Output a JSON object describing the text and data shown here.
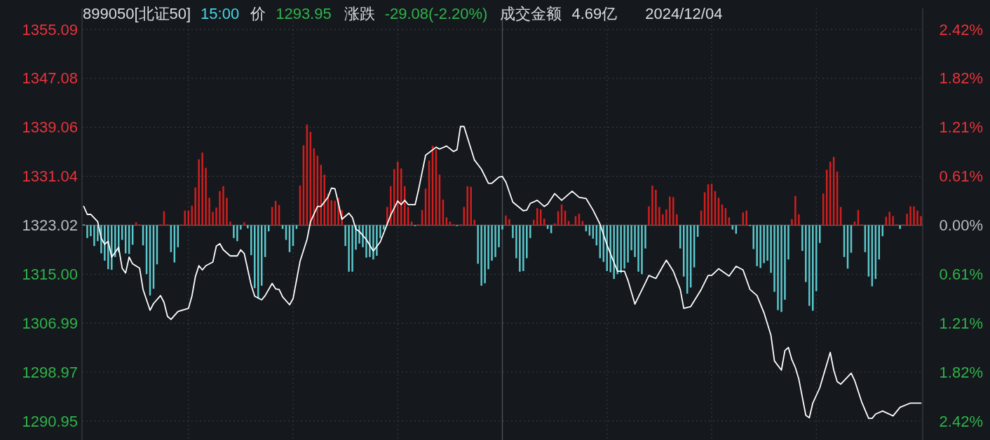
{
  "chart_data": {
    "type": "line",
    "title": "899050[北证50]",
    "annotations": [
      "15:00",
      "价",
      "1293.95",
      "涨跌",
      "-29.08(-2.20%)",
      "成交金额",
      "4.69亿",
      "2024/12/04"
    ],
    "categories": [
      null,
      null,
      null,
      null,
      null,
      null,
      null,
      null,
      null,
      null,
      null,
      null,
      null,
      null,
      null,
      null,
      null,
      null,
      null,
      null,
      null,
      null,
      null,
      null,
      null,
      null,
      null,
      null,
      null,
      null,
      null,
      null,
      null,
      null,
      null,
      null,
      null,
      null,
      null,
      null,
      null,
      null,
      null,
      null,
      null,
      null,
      null,
      null,
      null,
      null,
      null,
      null,
      null,
      null,
      null,
      null,
      null,
      null,
      null,
      null,
      null,
      null,
      null,
      null,
      null,
      null,
      null,
      null,
      null,
      null,
      null,
      null,
      null,
      null,
      null,
      null,
      null,
      null,
      null,
      null,
      null,
      null,
      null,
      null,
      null,
      null,
      null,
      null,
      null,
      null,
      null,
      null,
      null,
      null,
      null,
      null,
      null,
      null,
      null,
      null,
      null,
      null,
      null,
      null,
      null,
      null,
      null,
      null,
      null,
      null,
      null,
      null,
      null,
      null,
      null,
      null,
      null,
      null,
      null,
      null,
      null,
      null,
      null,
      null,
      null,
      null,
      null,
      null,
      null,
      null,
      null,
      null,
      null,
      null,
      null,
      null,
      null,
      null,
      null,
      null,
      null,
      null,
      null,
      null,
      null,
      null,
      null,
      null,
      null,
      null,
      null,
      null,
      null,
      null,
      null,
      null,
      null,
      null,
      null,
      null,
      null,
      null,
      null,
      null,
      null,
      null,
      null,
      null,
      null,
      null,
      null,
      null,
      null,
      null,
      null,
      null,
      null,
      null,
      null,
      null,
      null,
      null,
      null,
      null,
      null,
      null,
      null,
      null,
      null,
      null,
      null,
      null,
      null,
      null,
      null,
      null,
      null,
      null,
      null,
      null,
      null,
      null,
      null,
      null,
      null,
      null,
      null,
      null,
      null,
      null,
      null,
      null,
      null,
      null,
      null,
      null,
      null,
      null,
      null,
      null,
      null,
      null,
      null,
      null,
      null,
      null,
      null,
      null,
      null,
      null,
      null,
      null,
      null,
      null,
      null,
      null,
      null,
      null,
      null,
      null,
      null
    ],
    "ylim": [
      1290.95,
      1355.09
    ],
    "yticks": [
      {
        "value": 1290.95,
        "label": "1290.95"
      },
      {
        "value": 1298.97,
        "label": "1298.97"
      },
      {
        "value": 1306.99,
        "label": "1306.99"
      },
      {
        "value": 1315.0,
        "label": "1315.00"
      },
      {
        "value": 1323.02,
        "label": "1323.02"
      },
      {
        "value": 1331.04,
        "label": "1331.04"
      },
      {
        "value": 1339.06,
        "label": "1339.06"
      },
      {
        "value": 1347.08,
        "label": "1347.08"
      },
      {
        "value": 1355.09,
        "label": "1355.09"
      }
    ],
    "y2lim": [
      -2.42,
      2.42
    ],
    "y2ticks": [
      {
        "value": -2.42,
        "label": "2.42%"
      },
      {
        "value": -1.82,
        "label": "1.82%"
      },
      {
        "value": -1.21,
        "label": "1.21%"
      },
      {
        "value": -0.61,
        "label": "0.61%"
      },
      {
        "value": 0,
        "label": "0.00%"
      },
      {
        "value": 0.61,
        "label": "0.61%"
      },
      {
        "value": 1.21,
        "label": "1.21%"
      },
      {
        "value": 1.82,
        "label": "1.82%"
      },
      {
        "value": 2.42,
        "label": "2.42%"
      }
    ],
    "grid": "y",
    "ref_lines": [
      {
        "axis": "y",
        "value": 1323.02,
        "color": "#555b62",
        "line_style": "solid"
      }
    ],
    "series": [
      {
        "type": "bar",
        "base": [
          1323.02,
          1323.02,
          1323.02,
          1323.02,
          1323.02,
          1323.02,
          1323.02,
          1323.02,
          1323.02,
          1323.02,
          1323.02,
          1323.02,
          1323.02,
          1323.02,
          1323.02,
          1323.02,
          1323.02,
          1323.02,
          1323.02,
          1323.02,
          1323.02,
          1323.02,
          1323.02,
          1323.02,
          1323.02,
          1323.02,
          1323.02,
          1323.02,
          1323.02,
          1323.02,
          1323.02,
          1323.02,
          1323.02,
          1323.02,
          1323.02,
          1323.02,
          1323.02,
          1323.02,
          1323.02,
          1323.02,
          1323.02,
          1323.02,
          1323.02,
          1323.02,
          1323.02,
          1323.02,
          1323.02,
          1323.02,
          1323.02,
          1323.02,
          1323.02,
          1323.02,
          1323.02,
          1323.02,
          1323.02,
          1323.02,
          1323.02,
          1323.02,
          1323.02,
          1323.02,
          1323.02,
          1323.02,
          1323.02,
          1323.02,
          1323.02,
          1323.02,
          1323.02,
          1323.02,
          1323.02,
          1323.02,
          1323.02,
          1323.02,
          1323.02,
          1323.02,
          1323.02,
          1323.02,
          1323.02,
          1323.02,
          1323.02,
          1323.02,
          1323.02,
          1323.02,
          1323.02,
          1323.02,
          1323.02,
          1323.02,
          1323.02,
          1323.02,
          1323.02,
          1323.02,
          1323.02,
          1323.02,
          1323.02,
          1323.02,
          1323.02,
          1323.02,
          1323.02,
          1323.02,
          1323.02,
          1323.02,
          1323.02,
          1323.02,
          1323.02,
          1323.02,
          1323.02,
          1323.02,
          1323.02,
          1323.02,
          1323.02,
          1323.02,
          1323.02,
          1323.02,
          1323.02,
          1323.02,
          1323.02,
          1323.02,
          1323.02,
          1323.02,
          1323.02,
          1323.02,
          1323.02,
          1323.02,
          1323.02,
          1323.02,
          1323.02,
          1323.02,
          1323.02,
          1323.02,
          1323.02,
          1323.02,
          1323.02,
          1323.02,
          1323.02,
          1323.02,
          1323.02,
          1323.02,
          1323.02,
          1323.02,
          1323.02,
          1323.02,
          1323.02,
          1323.02,
          1323.02,
          1323.02,
          1323.02,
          1323.02,
          1323.02,
          1323.02,
          1323.02,
          1323.02,
          1323.02,
          1323.02,
          1323.02,
          1323.02,
          1323.02,
          1323.02,
          1323.02,
          1323.02,
          1323.02,
          1323.02,
          1323.02,
          1323.02,
          1323.02,
          1323.02,
          1323.02,
          1323.02,
          1323.02,
          1323.02,
          1323.02,
          1323.02,
          1323.02,
          1323.02,
          1323.02,
          1323.02,
          1323.02,
          1323.02,
          1323.02,
          1323.02,
          1323.02,
          1323.02,
          1323.02,
          1323.02,
          1323.02,
          1323.02,
          1323.02,
          1323.02,
          1323.02,
          1323.02,
          1323.02,
          1323.02,
          1323.02,
          1323.02,
          1323.02,
          1323.02,
          1323.02,
          1323.02,
          1323.02,
          1323.02,
          1323.02,
          1323.02,
          1323.02,
          1323.02,
          1323.02,
          1323.02,
          1323.02,
          1323.02,
          1323.02,
          1323.02,
          1323.02,
          1323.02,
          1323.02,
          1323.02,
          1323.02,
          1323.02,
          1323.02,
          1323.02,
          1323.02,
          1323.02,
          1323.02,
          1323.02,
          1323.02,
          1323.02,
          1323.02,
          1323.02,
          1323.02,
          1323.02,
          1323.02,
          1323.02,
          1323.02,
          1323.02,
          1323.02,
          1323.02,
          1323.02,
          1323.02,
          1323.02,
          1323.02,
          1323.02,
          1323.02,
          1323.02,
          1323.02,
          1323.02
        ],
        "values": [
          0,
          -2.1,
          -1.8,
          -3.4,
          -2.6,
          -4.6,
          -5.8,
          -7.2,
          -7.3,
          -5.2,
          -4.4,
          -2.4,
          -4.6,
          -4.7,
          -3.2,
          0.5,
          0.1,
          -3.3,
          -8.0,
          -11.5,
          -10.4,
          -6.4,
          0,
          2.3,
          0.1,
          -4.4,
          -6.1,
          -3.6,
          0.1,
          2.4,
          2.4,
          3.2,
          6.2,
          10.8,
          11.9,
          9.4,
          4.5,
          2.2,
          2.9,
          5.6,
          6.4,
          4.5,
          0.6,
          -2.1,
          -2.6,
          -0.7,
          0.5,
          -0.5,
          -4.9,
          -10.3,
          -12.0,
          -9.9,
          -5.2,
          -1.0,
          3.0,
          4.0,
          3.3,
          -0.6,
          -2.4,
          -4.4,
          -3.4,
          -0.6,
          6.5,
          13.1,
          16.5,
          15.3,
          12.6,
          11.4,
          9.9,
          8.3,
          5.2,
          4.1,
          4.0,
          4.5,
          2.5,
          -3.4,
          -7.6,
          -7.6,
          -4.0,
          -3.0,
          -3.6,
          -5.3,
          -5.2,
          -5.6,
          -5.0,
          -2.1,
          -0.7,
          3.0,
          6.4,
          9.2,
          10.4,
          9.3,
          6.4,
          3.0,
          0.6,
          -0.1,
          0,
          2.5,
          6.0,
          10.6,
          13.0,
          12.4,
          8.3,
          4.2,
          1.3,
          0.6,
          0.2,
          -0.1,
          0.1,
          3.0,
          6.4,
          6.3,
          0.9,
          -6.3,
          -9.9,
          -9.5,
          -7.2,
          -5.8,
          -5.2,
          -3.6,
          -0.7,
          1.6,
          1.0,
          -2.1,
          -5.4,
          -7.6,
          -7.5,
          -5.4,
          -2.1,
          0.9,
          2.8,
          2.6,
          1.1,
          -0.6,
          -1.3,
          0.3,
          2.3,
          3.4,
          2.4,
          0.7,
          0.1,
          1.5,
          1.9,
          0.7,
          -1.0,
          -1.7,
          -2.2,
          -3.3,
          -5.4,
          -6.0,
          -7.5,
          -7.7,
          -8.8,
          -8.0,
          -7.8,
          -7.1,
          -6.1,
          -4.1,
          -5.2,
          -7.6,
          -8.0,
          -3.8,
          3.1,
          6.5,
          5.8,
          3.0,
          1.8,
          2.6,
          4.7,
          4.6,
          1.8,
          -3.8,
          -8.4,
          -11.2,
          -10.2,
          -6.9,
          -1.9,
          2.4,
          5.4,
          6.7,
          6.8,
          5.6,
          4.5,
          3.4,
          2.8,
          1.3,
          -0.7,
          -1.4,
          0,
          2.1,
          2.4,
          -0.1,
          -3.9,
          -6.7,
          -7.0,
          -6.2,
          -5.8,
          -7.8,
          -10.9,
          -13.9,
          -14.2,
          -12.2,
          -5.6,
          1.0,
          4.8,
          1.8,
          -4.2,
          -9.3,
          -13.2,
          -14.0,
          -10.8,
          -2.9,
          5.2,
          9.1,
          10.4,
          11.2,
          8.8,
          3.0,
          -5.2,
          -7.1,
          -4.5,
          0.6,
          2.5,
          0.1,
          -4.4,
          -8.4,
          -10.0,
          -8.8,
          -5.6,
          -1.8,
          1.4,
          2.2,
          1.5,
          0,
          -0.6,
          0.1,
          1.9,
          3.1,
          3.1,
          2.4,
          1.5
        ],
        "colors": [
          "#5ac8cc",
          "#5ac8cc",
          "#5ac8cc",
          "#5ac8cc",
          "#5ac8cc",
          "#5ac8cc",
          "#5ac8cc",
          "#5ac8cc",
          "#5ac8cc",
          "#5ac8cc",
          "#5ac8cc",
          "#5ac8cc",
          "#5ac8cc",
          "#5ac8cc",
          "#5ac8cc",
          "#d21e1e",
          "#d21e1e",
          "#5ac8cc",
          "#5ac8cc",
          "#5ac8cc",
          "#5ac8cc",
          "#5ac8cc",
          "#d21e1e",
          "#d21e1e",
          "#d21e1e",
          "#5ac8cc",
          "#5ac8cc",
          "#5ac8cc",
          "#d21e1e",
          "#d21e1e",
          "#d21e1e",
          "#d21e1e",
          "#d21e1e",
          "#d21e1e",
          "#d21e1e",
          "#d21e1e",
          "#d21e1e",
          "#d21e1e",
          "#d21e1e",
          "#d21e1e",
          "#d21e1e",
          "#d21e1e",
          "#d21e1e",
          "#5ac8cc",
          "#5ac8cc",
          "#5ac8cc",
          "#d21e1e",
          "#5ac8cc",
          "#5ac8cc",
          "#5ac8cc",
          "#5ac8cc",
          "#5ac8cc",
          "#5ac8cc",
          "#5ac8cc",
          "#d21e1e",
          "#d21e1e",
          "#d21e1e",
          "#5ac8cc",
          "#5ac8cc",
          "#5ac8cc",
          "#5ac8cc",
          "#5ac8cc",
          "#d21e1e",
          "#d21e1e",
          "#d21e1e",
          "#d21e1e",
          "#d21e1e",
          "#d21e1e",
          "#d21e1e",
          "#d21e1e",
          "#d21e1e",
          "#d21e1e",
          "#d21e1e",
          "#d21e1e",
          "#d21e1e",
          "#5ac8cc",
          "#5ac8cc",
          "#5ac8cc",
          "#5ac8cc",
          "#5ac8cc",
          "#5ac8cc",
          "#5ac8cc",
          "#5ac8cc",
          "#5ac8cc",
          "#5ac8cc",
          "#5ac8cc",
          "#5ac8cc",
          "#d21e1e",
          "#d21e1e",
          "#d21e1e",
          "#d21e1e",
          "#d21e1e",
          "#d21e1e",
          "#d21e1e",
          "#d21e1e",
          "#5ac8cc",
          "#d21e1e",
          "#d21e1e",
          "#d21e1e",
          "#d21e1e",
          "#d21e1e",
          "#d21e1e",
          "#d21e1e",
          "#d21e1e",
          "#d21e1e",
          "#d21e1e",
          "#d21e1e",
          "#5ac8cc",
          "#d21e1e",
          "#d21e1e",
          "#d21e1e",
          "#d21e1e",
          "#d21e1e",
          "#5ac8cc",
          "#5ac8cc",
          "#5ac8cc",
          "#5ac8cc",
          "#5ac8cc",
          "#5ac8cc",
          "#5ac8cc",
          "#5ac8cc",
          "#d21e1e",
          "#d21e1e",
          "#5ac8cc",
          "#5ac8cc",
          "#5ac8cc",
          "#5ac8cc",
          "#5ac8cc",
          "#5ac8cc",
          "#d21e1e",
          "#d21e1e",
          "#d21e1e",
          "#d21e1e",
          "#5ac8cc",
          "#5ac8cc",
          "#d21e1e",
          "#d21e1e",
          "#d21e1e",
          "#d21e1e",
          "#d21e1e",
          "#d21e1e",
          "#d21e1e",
          "#d21e1e",
          "#d21e1e",
          "#5ac8cc",
          "#5ac8cc",
          "#5ac8cc",
          "#5ac8cc",
          "#5ac8cc",
          "#5ac8cc",
          "#5ac8cc",
          "#5ac8cc",
          "#5ac8cc",
          "#5ac8cc",
          "#5ac8cc",
          "#5ac8cc",
          "#5ac8cc",
          "#5ac8cc",
          "#5ac8cc",
          "#5ac8cc",
          "#5ac8cc",
          "#5ac8cc",
          "#d21e1e",
          "#d21e1e",
          "#d21e1e",
          "#d21e1e",
          "#d21e1e",
          "#d21e1e",
          "#d21e1e",
          "#d21e1e",
          "#d21e1e",
          "#5ac8cc",
          "#5ac8cc",
          "#5ac8cc",
          "#5ac8cc",
          "#5ac8cc",
          "#5ac8cc",
          "#d21e1e",
          "#d21e1e",
          "#d21e1e",
          "#d21e1e",
          "#d21e1e",
          "#d21e1e",
          "#d21e1e",
          "#d21e1e",
          "#d21e1e",
          "#5ac8cc",
          "#5ac8cc",
          "#d21e1e",
          "#d21e1e",
          "#d21e1e",
          "#5ac8cc",
          "#5ac8cc",
          "#5ac8cc",
          "#5ac8cc",
          "#5ac8cc",
          "#5ac8cc",
          "#5ac8cc",
          "#5ac8cc",
          "#5ac8cc",
          "#5ac8cc",
          "#5ac8cc",
          "#5ac8cc",
          "#d21e1e",
          "#d21e1e",
          "#d21e1e",
          "#5ac8cc",
          "#5ac8cc",
          "#5ac8cc",
          "#5ac8cc",
          "#5ac8cc",
          "#5ac8cc",
          "#d21e1e",
          "#d21e1e",
          "#d21e1e",
          "#d21e1e",
          "#d21e1e",
          "#d21e1e",
          "#5ac8cc",
          "#5ac8cc",
          "#5ac8cc",
          "#d21e1e",
          "#d21e1e",
          "#d21e1e",
          "#5ac8cc",
          "#5ac8cc",
          "#5ac8cc",
          "#5ac8cc",
          "#5ac8cc",
          "#5ac8cc",
          "#d21e1e",
          "#d21e1e",
          "#d21e1e",
          "#d21e1e",
          "#5ac8cc",
          "#d21e1e",
          "#d21e1e",
          "#d21e1e",
          "#d21e1e",
          "#d21e1e",
          "#d21e1e"
        ]
      },
      {
        "color": "#ffffff",
        "values": [
          1326.1,
          1324.8,
          1324.8,
          null,
          1323.6,
          1320.9,
          1319.9,
          1320.4,
          1317.8,
          null,
          1319.4,
          1316.0,
          1315.2,
          1317.8,
          1316.7,
          null,
          1316.0,
          1312.5,
          null,
          1309.1,
          1310.2,
          null,
          1311.5,
          1310.4,
          1308.1,
          1307.6,
          null,
          1308.9,
          null,
          null,
          1309.4,
          1311.4,
          1314.6,
          1316.4,
          1315.7,
          1316.4,
          null,
          1317.0,
          1319.6,
          1320.0,
          1319.0,
          null,
          1318.0,
          null,
          1318.0,
          1319.0,
          1318.4,
          null,
          1313.2,
          1311.4,
          null,
          1310.8,
          1311.5,
          null,
          1313.5,
          1312.6,
          1312.5,
          1311.3,
          null,
          1310.0,
          1311.0,
          null,
          1317.1,
          null,
          1320.7,
          1323.6,
          null,
          1326.1,
          1326.1,
          null,
          1327.6,
          1329.1,
          1329.0,
          1326.6,
          1324.0,
          null,
          1325.0,
          1324.3,
          1322.4,
          1322.0,
          null,
          1320.7,
          null,
          1318.8,
          null,
          1320.3,
          null,
          null,
          1324.7,
          null,
          1327.0,
          1326.4,
          1327.1,
          1326.4,
          null,
          1326.4,
          1328.9,
          null,
          1334.5,
          null,
          null,
          1335.8,
          1335.5,
          null,
          1336.0,
          null,
          1335.1,
          1335.4,
          1339.2,
          1339.2,
          null,
          null,
          1333.7,
          null,
          1332.2,
          null,
          1329.9,
          1329.9,
          null,
          1330.9,
          1331.0,
          1330.1,
          null,
          1326.8,
          null,
          null,
          1325.4,
          1325.5,
          1326.6,
          null,
          1327.1,
          null,
          1326.1,
          1326.5,
          null,
          1328.2,
          null,
          1327.1,
          null,
          null,
          1328.6,
          null,
          1327.6,
          null,
          1327.4,
          null,
          1325.5,
          null,
          1323.2,
          null,
          1319.8,
          null,
          null,
          1315.5,
          null,
          1315.5,
          1314.0,
          null,
          1310.1,
          null,
          null,
          1313.6,
          1314.8,
          null,
          1314.3,
          null,
          1316.3,
          1317.3,
          null,
          1315.5,
          null,
          1312.5,
          1309.4,
          null,
          1309.7,
          null,
          null,
          1312.5,
          null,
          1314.8,
          1314.8,
          null,
          1315.9,
          null,
          null,
          1314.7,
          null,
          1316.3,
          null,
          1315.7,
          null,
          1312.5,
          null,
          1311.5,
          null,
          1308.7,
          null,
          1305.0,
          1300.8,
          null,
          1299.3,
          1302.5,
          1303.0,
          1301.0,
          1299.7,
          1297.8,
          null,
          1291.9,
          1291.5,
          1293.9,
          null,
          1296.4,
          null,
          null,
          1302.2,
          1299.3,
          1297.4,
          1297.0,
          1297.6,
          null,
          1298.8,
          1297.6,
          null,
          1294.1,
          null,
          1291.4,
          1291.4,
          1292.1,
          null,
          1292.6,
          null,
          null,
          1291.8,
          null,
          1293.2,
          null,
          null,
          1293.9,
          null,
          null,
          1293.9
        ]
      }
    ]
  }
}
